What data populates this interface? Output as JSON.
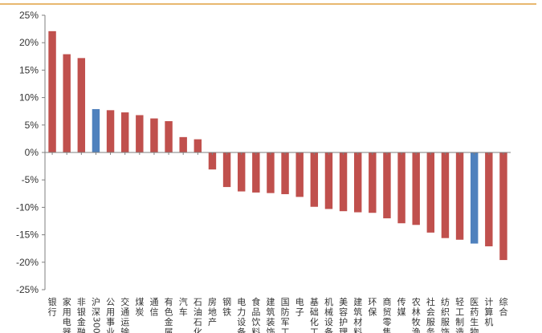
{
  "chart_data": {
    "type": "bar",
    "title": "",
    "xlabel": "",
    "ylabel": "",
    "ylim": [
      -0.25,
      0.25
    ],
    "y_ticks": [
      "25%",
      "20%",
      "15%",
      "10%",
      "5%",
      "0%",
      "-5%",
      "-10%",
      "-15%",
      "-20%",
      "-25%"
    ],
    "grid": false,
    "colors": {
      "default": "#C0504D",
      "highlight": "#4F81BD",
      "top_rule": "#E0A040"
    },
    "categories": [
      "银行",
      "家用电器",
      "非银金融",
      "沪深300",
      "公用事业",
      "交通运输",
      "煤炭",
      "通信",
      "有色金属",
      "汽车",
      "石油石化",
      "房地产",
      "钢铁",
      "电力设备",
      "食品饮料",
      "建筑装饰",
      "国防军工",
      "电子",
      "基础化工",
      "机械设备",
      "美容护理",
      "建筑材料",
      "环保",
      "商贸零售",
      "传媒",
      "农林牧渔",
      "社会服务",
      "纺织服饰",
      "轻工制造",
      "医药生物",
      "计算机",
      "综合"
    ],
    "values": [
      0.221,
      0.179,
      0.172,
      0.079,
      0.077,
      0.073,
      0.068,
      0.062,
      0.057,
      0.028,
      0.024,
      -0.031,
      -0.063,
      -0.071,
      -0.073,
      -0.074,
      -0.076,
      -0.081,
      -0.099,
      -0.103,
      -0.107,
      -0.109,
      -0.11,
      -0.12,
      -0.129,
      -0.132,
      -0.146,
      -0.156,
      -0.159,
      -0.166,
      -0.171,
      -0.196
    ],
    "highlight": [
      "沪深300",
      "医药生物"
    ]
  }
}
